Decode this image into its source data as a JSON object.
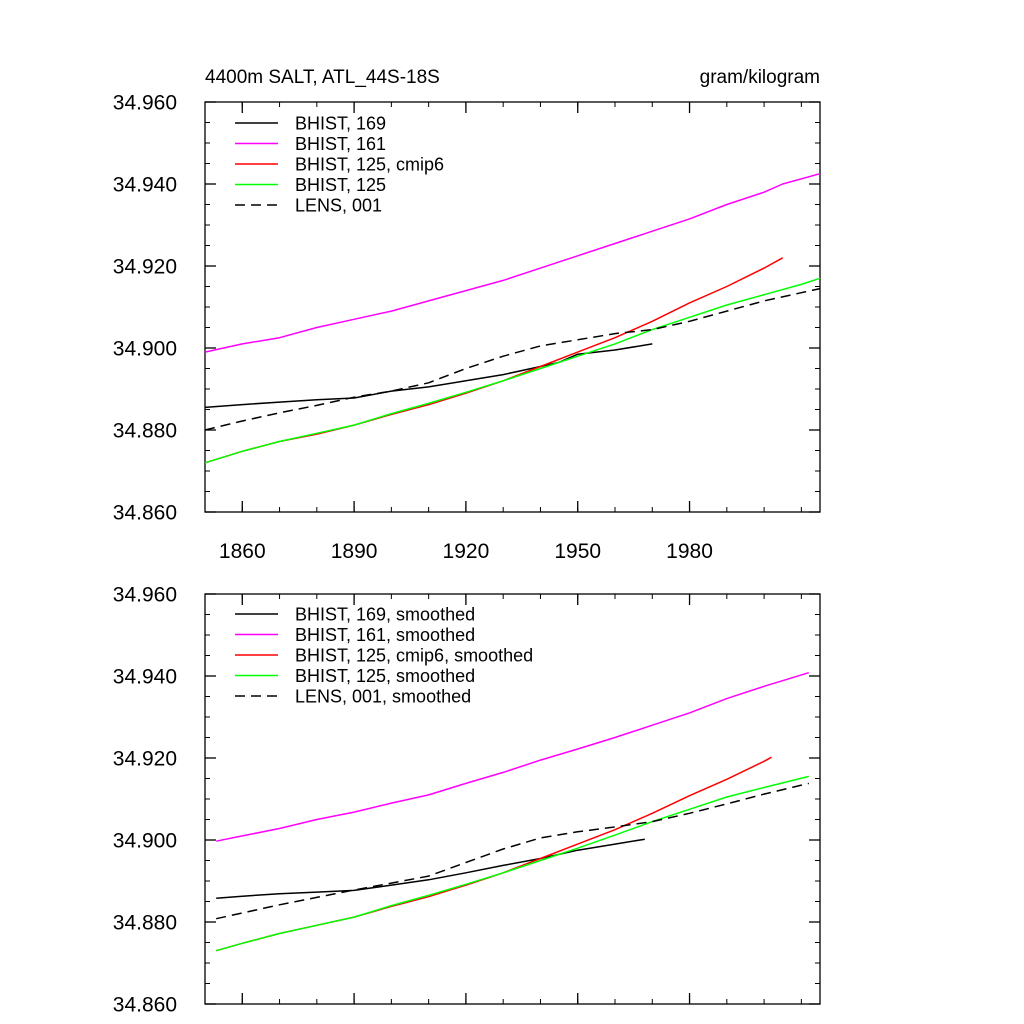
{
  "chart_data": [
    {
      "type": "line",
      "title": "4400m SALT, ATL_44S-18S",
      "units": "gram/kilogram",
      "xlabel": "",
      "ylabel": "",
      "xlim": [
        1850,
        2015
      ],
      "ylim": [
        34.86,
        34.96
      ],
      "xticks": [
        1860,
        1890,
        1920,
        1950,
        1980
      ],
      "xtick_labels": [
        "1860",
        "1890",
        "1920",
        "1950",
        "1980"
      ],
      "yticks": [
        34.86,
        34.88,
        34.9,
        34.92,
        34.94,
        34.96
      ],
      "ytick_labels": [
        "34.860",
        "34.880",
        "34.900",
        "34.920",
        "34.940",
        "34.960"
      ],
      "legend_position": "top-left",
      "series": [
        {
          "name": "BHIST, 169",
          "color": "#000000",
          "dash": "solid",
          "x": [
            1850,
            1860,
            1870,
            1880,
            1890,
            1900,
            1910,
            1920,
            1930,
            1940,
            1945,
            1950,
            1960,
            1970
          ],
          "values": [
            34.8855,
            34.8862,
            34.8868,
            34.8874,
            34.8878,
            34.8895,
            34.8905,
            34.892,
            34.8935,
            34.8955,
            34.8965,
            34.8985,
            34.8995,
            34.901
          ]
        },
        {
          "name": "BHIST, 161",
          "color": "#ff00ff",
          "dash": "solid",
          "x": [
            1850,
            1860,
            1870,
            1880,
            1890,
            1900,
            1910,
            1920,
            1930,
            1940,
            1950,
            1960,
            1970,
            1980,
            1990,
            2000,
            2005,
            2015
          ],
          "values": [
            34.899,
            34.901,
            34.9025,
            34.905,
            34.907,
            34.909,
            34.9115,
            34.914,
            34.9165,
            34.9195,
            34.9225,
            34.9255,
            34.9285,
            34.9315,
            34.935,
            34.938,
            34.94,
            34.9425
          ]
        },
        {
          "name": "BHIST, 125, cmip6",
          "color": "#ff0000",
          "dash": "solid",
          "x": [
            1850,
            1860,
            1870,
            1880,
            1890,
            1900,
            1910,
            1920,
            1930,
            1940,
            1950,
            1960,
            1970,
            1980,
            1990,
            2000,
            2005
          ],
          "values": [
            34.872,
            34.8748,
            34.8772,
            34.879,
            34.8812,
            34.8838,
            34.8862,
            34.889,
            34.892,
            34.8955,
            34.899,
            34.9025,
            34.9065,
            34.911,
            34.915,
            34.9195,
            34.922
          ]
        },
        {
          "name": "BHIST, 125",
          "color": "#00ff00",
          "dash": "solid",
          "x": [
            1850,
            1860,
            1870,
            1880,
            1890,
            1900,
            1910,
            1920,
            1930,
            1940,
            1950,
            1960,
            1970,
            1980,
            1990,
            2000,
            2010,
            2015
          ],
          "values": [
            34.872,
            34.8748,
            34.8772,
            34.8792,
            34.8812,
            34.884,
            34.8865,
            34.8892,
            34.892,
            34.895,
            34.898,
            34.901,
            34.9045,
            34.9075,
            34.9105,
            34.913,
            34.9155,
            34.917
          ]
        },
        {
          "name": "LENS, 001",
          "color": "#000000",
          "dash": "dashed",
          "x": [
            1850,
            1860,
            1870,
            1880,
            1890,
            1900,
            1910,
            1920,
            1930,
            1940,
            1950,
            1960,
            1970,
            1980,
            1990,
            2000,
            2010,
            2015
          ],
          "values": [
            34.88,
            34.8822,
            34.8842,
            34.886,
            34.888,
            34.8895,
            34.8915,
            34.895,
            34.898,
            34.9005,
            34.902,
            34.9035,
            34.9045,
            34.9065,
            34.909,
            34.9115,
            34.9135,
            34.9145
          ]
        }
      ]
    },
    {
      "type": "line",
      "title": "",
      "units": "",
      "xlabel": "",
      "ylabel": "",
      "xlim": [
        1850,
        2015
      ],
      "ylim": [
        34.86,
        34.96
      ],
      "xticks": [
        1860,
        1890,
        1920,
        1950,
        1980
      ],
      "xtick_labels": [],
      "yticks": [
        34.86,
        34.88,
        34.9,
        34.92,
        34.94,
        34.96
      ],
      "ytick_labels": [
        "34.860",
        "34.880",
        "34.900",
        "34.920",
        "34.940",
        "34.960"
      ],
      "legend_position": "top-left",
      "series": [
        {
          "name": "BHIST, 169, smoothed",
          "color": "#000000",
          "dash": "solid",
          "x": [
            1853,
            1860,
            1870,
            1880,
            1890,
            1900,
            1910,
            1920,
            1930,
            1940,
            1950,
            1960,
            1968
          ],
          "values": [
            34.8858,
            34.8863,
            34.8869,
            34.8873,
            34.8877,
            34.889,
            34.8903,
            34.892,
            34.8938,
            34.8955,
            34.8975,
            34.899,
            34.9002
          ]
        },
        {
          "name": "BHIST, 161, smoothed",
          "color": "#ff00ff",
          "dash": "solid",
          "x": [
            1853,
            1860,
            1870,
            1880,
            1890,
            1900,
            1910,
            1920,
            1930,
            1940,
            1950,
            1960,
            1970,
            1980,
            1990,
            2000,
            2012
          ],
          "values": [
            34.8997,
            34.901,
            34.9028,
            34.905,
            34.9068,
            34.909,
            34.911,
            34.9138,
            34.9165,
            34.9195,
            34.9222,
            34.925,
            34.928,
            34.931,
            34.9345,
            34.9375,
            34.9408
          ]
        },
        {
          "name": "BHIST, 125, cmip6, smoothed",
          "color": "#ff0000",
          "dash": "solid",
          "x": [
            1853,
            1860,
            1870,
            1880,
            1890,
            1900,
            1910,
            1920,
            1930,
            1940,
            1950,
            1960,
            1970,
            1980,
            1990,
            2000,
            2002
          ],
          "values": [
            34.873,
            34.8748,
            34.8772,
            34.8792,
            34.8812,
            34.8838,
            34.8862,
            34.889,
            34.892,
            34.8955,
            34.899,
            34.9025,
            34.9065,
            34.9108,
            34.9148,
            34.9192,
            34.9202
          ]
        },
        {
          "name": "BHIST, 125, smoothed",
          "color": "#00ff00",
          "dash": "solid",
          "x": [
            1853,
            1860,
            1870,
            1880,
            1890,
            1900,
            1910,
            1920,
            1930,
            1940,
            1950,
            1960,
            1970,
            1980,
            1990,
            2000,
            2012
          ],
          "values": [
            34.873,
            34.8748,
            34.8772,
            34.8792,
            34.8812,
            34.884,
            34.8865,
            34.8892,
            34.892,
            34.895,
            34.898,
            34.9012,
            34.9045,
            34.9075,
            34.9105,
            34.9128,
            34.9155
          ]
        },
        {
          "name": "LENS, 001, smoothed",
          "color": "#000000",
          "dash": "dashed",
          "x": [
            1853,
            1860,
            1870,
            1880,
            1890,
            1900,
            1910,
            1920,
            1930,
            1940,
            1950,
            1960,
            1970,
            1980,
            1990,
            2000,
            2012
          ],
          "values": [
            34.8808,
            34.8822,
            34.8842,
            34.886,
            34.8878,
            34.8895,
            34.8912,
            34.8945,
            34.8978,
            34.9005,
            34.902,
            34.9032,
            34.9045,
            34.9065,
            34.9088,
            34.9112,
            34.9138
          ]
        }
      ]
    }
  ]
}
